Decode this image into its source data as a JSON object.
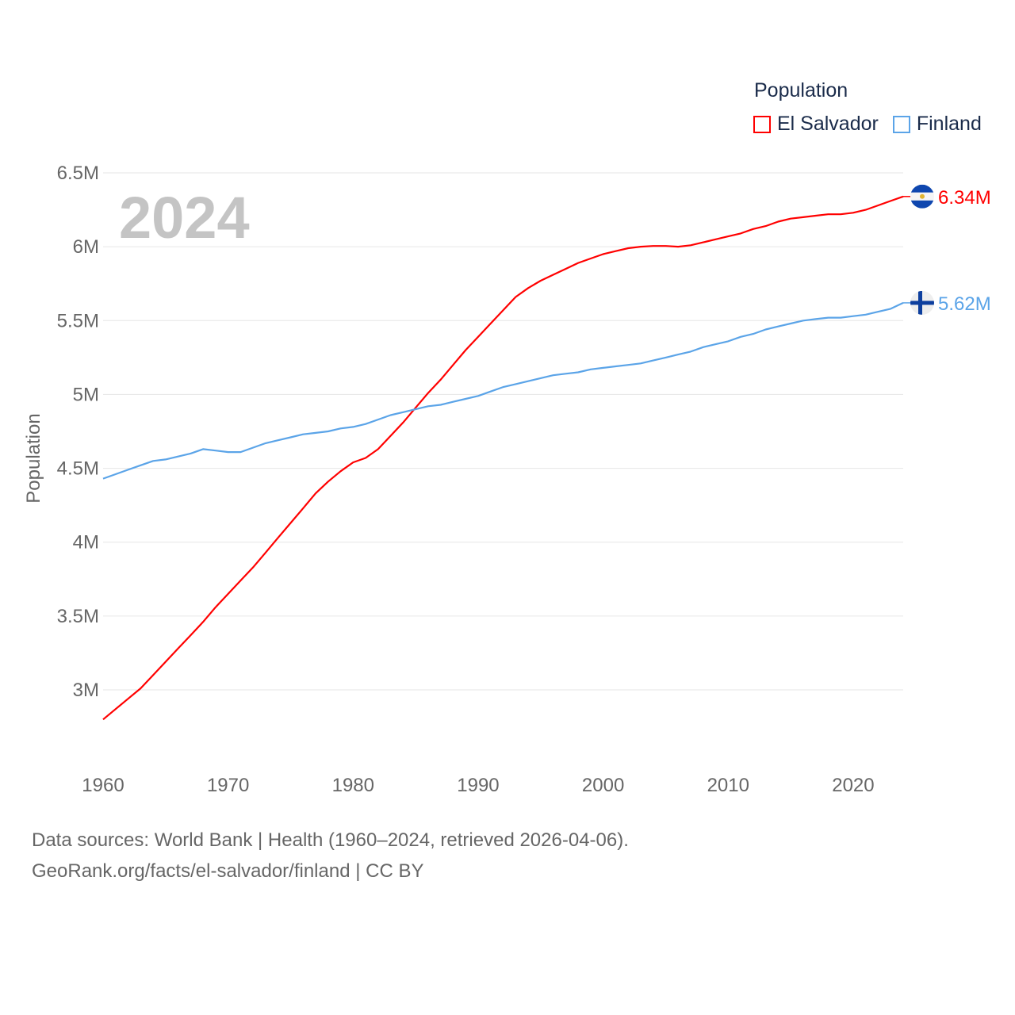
{
  "chart_data": {
    "type": "line",
    "title": "Population",
    "ylabel": "Population",
    "xlabel": "",
    "year_watermark": "2024",
    "ylim": [
      2.6,
      6.5
    ],
    "yticks": [
      {
        "v": 3,
        "label": "3M"
      },
      {
        "v": 3.5,
        "label": "3.5M"
      },
      {
        "v": 4,
        "label": "4M"
      },
      {
        "v": 4.5,
        "label": "4.5M"
      },
      {
        "v": 5,
        "label": "5M"
      },
      {
        "v": 5.5,
        "label": "5.5M"
      },
      {
        "v": 6,
        "label": "6M"
      },
      {
        "v": 6.5,
        "label": "6.5M"
      }
    ],
    "xlim": [
      1960,
      2024
    ],
    "xticks": [
      "1960",
      "1970",
      "1980",
      "1990",
      "2000",
      "2010",
      "2020"
    ],
    "x_start": 1960,
    "units": "millions",
    "series": [
      {
        "name": "El Salvador",
        "color": "#ff0000",
        "end_label": "6.34M",
        "flag": "el-salvador-flag",
        "values": [
          2.8,
          2.87,
          2.94,
          3.01,
          3.1,
          3.19,
          3.28,
          3.37,
          3.46,
          3.56,
          3.65,
          3.74,
          3.83,
          3.93,
          4.03,
          4.13,
          4.23,
          4.33,
          4.41,
          4.48,
          4.54,
          4.57,
          4.63,
          4.72,
          4.81,
          4.91,
          5.01,
          5.1,
          5.2,
          5.3,
          5.39,
          5.48,
          5.57,
          5.66,
          5.72,
          5.77,
          5.81,
          5.85,
          5.89,
          5.92,
          5.95,
          5.97,
          5.99,
          6.0,
          6.005,
          6.005,
          6.0,
          6.01,
          6.03,
          6.05,
          6.07,
          6.09,
          6.12,
          6.14,
          6.17,
          6.19,
          6.2,
          6.21,
          6.22,
          6.22,
          6.23,
          6.25,
          6.28,
          6.31,
          6.34
        ]
      },
      {
        "name": "Finland",
        "color": "#5ba4e8",
        "end_label": "5.62M",
        "flag": "finland-flag",
        "values": [
          4.43,
          4.46,
          4.49,
          4.52,
          4.55,
          4.56,
          4.58,
          4.6,
          4.63,
          4.62,
          4.61,
          4.61,
          4.64,
          4.67,
          4.69,
          4.71,
          4.73,
          4.74,
          4.75,
          4.77,
          4.78,
          4.8,
          4.83,
          4.86,
          4.88,
          4.9,
          4.92,
          4.93,
          4.95,
          4.97,
          4.99,
          5.02,
          5.05,
          5.07,
          5.09,
          5.11,
          5.13,
          5.14,
          5.15,
          5.17,
          5.18,
          5.19,
          5.2,
          5.21,
          5.23,
          5.25,
          5.27,
          5.29,
          5.32,
          5.34,
          5.36,
          5.39,
          5.41,
          5.44,
          5.46,
          5.48,
          5.5,
          5.51,
          5.52,
          5.52,
          5.53,
          5.54,
          5.56,
          5.58,
          5.62
        ]
      }
    ],
    "legend_position": "top-right"
  },
  "source": {
    "line1": "Data sources: World Bank | Health (1960–2024, retrieved 2026-04-06).",
    "line2": "GeoRank.org/facts/el-salvador/finland | CC BY"
  }
}
